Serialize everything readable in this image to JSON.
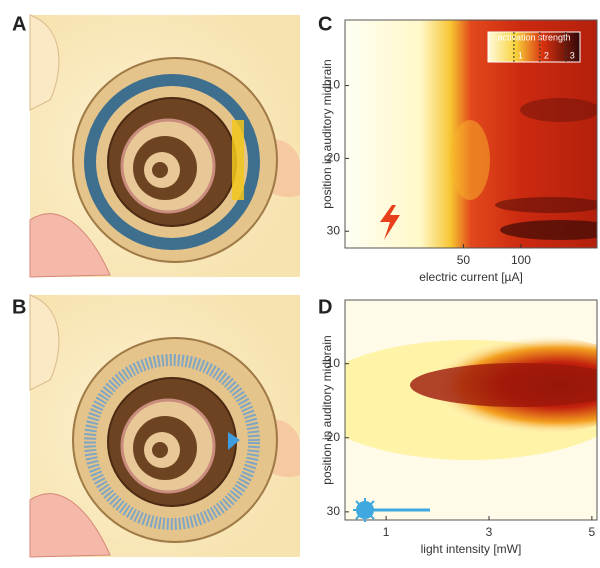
{
  "panels": [
    {
      "label": "A"
    },
    {
      "label": "B"
    },
    {
      "label": "C",
      "x_label": "electric current [µA]",
      "y_label": "position in auditory midbrain",
      "xlim": [
        12,
        250
      ],
      "xlog": true,
      "xticks": [
        50,
        100
      ],
      "ylim": [
        1,
        32.3
      ],
      "yticks": [
        10,
        20,
        30
      ],
      "colorbar": {
        "label": "activation strength",
        "lim": [
          0,
          3.55
        ],
        "ticks": [
          1,
          2,
          3
        ]
      }
    },
    {
      "label": "D",
      "x_label": "light intensity [mW]",
      "y_label": "position in auditory midbrain",
      "xlim": [
        0.2,
        5.1
      ],
      "xticks": [
        1,
        3,
        5
      ],
      "ylim": [
        1.4,
        31.1
      ],
      "yticks": [
        10,
        20,
        30
      ]
    }
  ]
}
